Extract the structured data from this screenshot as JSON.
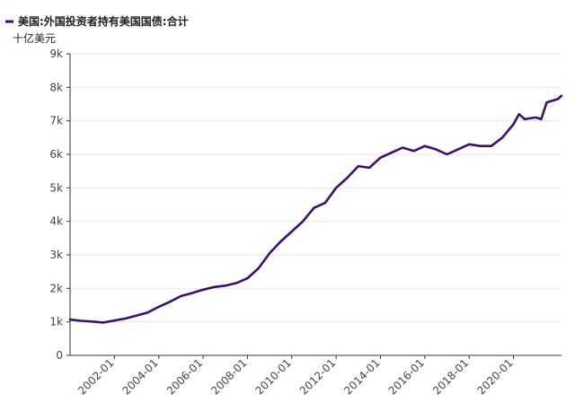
{
  "chart_data": {
    "type": "line",
    "unit": "十亿美元",
    "legend_placement": "top-left",
    "grid": true,
    "ylim": [
      0,
      9000
    ],
    "y_ticks": [
      {
        "value": 0,
        "label": "0"
      },
      {
        "value": 1000,
        "label": "1k"
      },
      {
        "value": 2000,
        "label": "2k"
      },
      {
        "value": 3000,
        "label": "3k"
      },
      {
        "value": 4000,
        "label": "4k"
      },
      {
        "value": 5000,
        "label": "5k"
      },
      {
        "value": 6000,
        "label": "6k"
      },
      {
        "value": 7000,
        "label": "7k"
      },
      {
        "value": 8000,
        "label": "8k"
      },
      {
        "value": 9000,
        "label": "9k"
      }
    ],
    "xlim": [
      "2000-01",
      "2022-03"
    ],
    "x_ticks": [
      "2002-01",
      "2004-01",
      "2006-01",
      "2008-01",
      "2010-01",
      "2012-01",
      "2014-01",
      "2016-01",
      "2018-01",
      "2020-01"
    ],
    "series": [
      {
        "name": "美国:外国投资者持有美国国债:合计",
        "color": "#3d0f6b",
        "points": [
          [
            "2000-01",
            1070
          ],
          [
            "2000-07",
            1030
          ],
          [
            "2001-01",
            1010
          ],
          [
            "2001-07",
            980
          ],
          [
            "2002-01",
            1040
          ],
          [
            "2002-07",
            1100
          ],
          [
            "2003-01",
            1190
          ],
          [
            "2003-07",
            1280
          ],
          [
            "2004-01",
            1450
          ],
          [
            "2004-07",
            1600
          ],
          [
            "2005-01",
            1770
          ],
          [
            "2005-07",
            1860
          ],
          [
            "2006-01",
            1960
          ],
          [
            "2006-07",
            2040
          ],
          [
            "2007-01",
            2080
          ],
          [
            "2007-07",
            2160
          ],
          [
            "2008-01",
            2300
          ],
          [
            "2008-07",
            2600
          ],
          [
            "2009-01",
            3050
          ],
          [
            "2009-07",
            3400
          ],
          [
            "2010-01",
            3700
          ],
          [
            "2010-07",
            4000
          ],
          [
            "2011-01",
            4400
          ],
          [
            "2011-07",
            4550
          ],
          [
            "2012-01",
            5000
          ],
          [
            "2012-07",
            5300
          ],
          [
            "2013-01",
            5650
          ],
          [
            "2013-07",
            5600
          ],
          [
            "2014-01",
            5900
          ],
          [
            "2014-07",
            6050
          ],
          [
            "2015-01",
            6200
          ],
          [
            "2015-07",
            6100
          ],
          [
            "2016-01",
            6250
          ],
          [
            "2016-07",
            6150
          ],
          [
            "2017-01",
            6000
          ],
          [
            "2017-07",
            6150
          ],
          [
            "2018-01",
            6300
          ],
          [
            "2018-07",
            6250
          ],
          [
            "2019-01",
            6250
          ],
          [
            "2019-07",
            6500
          ],
          [
            "2020-01",
            6900
          ],
          [
            "2020-04",
            7200
          ],
          [
            "2020-07",
            7050
          ],
          [
            "2021-01",
            7100
          ],
          [
            "2021-04",
            7050
          ],
          [
            "2021-07",
            7550
          ],
          [
            "2022-01",
            7650
          ],
          [
            "2022-03",
            7750
          ]
        ]
      }
    ]
  },
  "colors": {
    "line": "#3d0f6b",
    "grid": "#e6e6e6",
    "axis": "#333333"
  }
}
